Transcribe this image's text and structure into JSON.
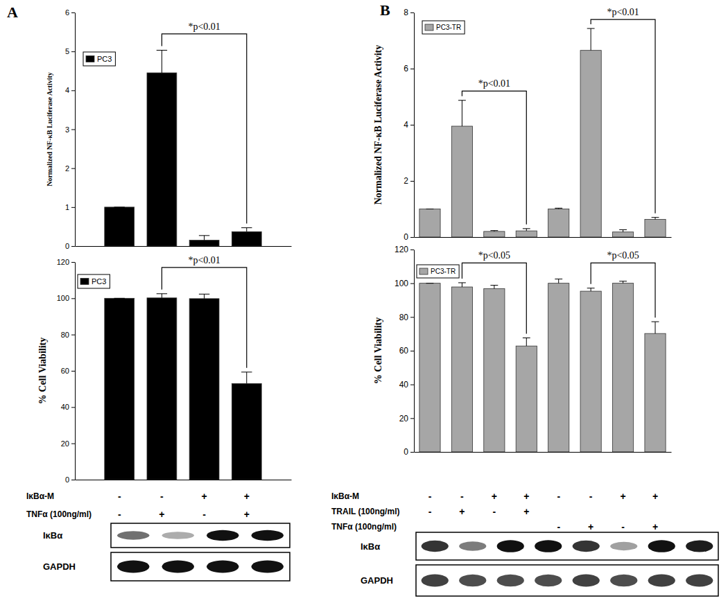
{
  "chart_data": [
    {
      "type": "bar",
      "panel": "A",
      "ylabel": "Normalized NF-κB Luciferase Activity",
      "categories": [
        null,
        null,
        null,
        null
      ],
      "series": [
        {
          "name": "PC3",
          "color": "#000000",
          "values": [
            1,
            4.45,
            0.15,
            0.37
          ],
          "errors": [
            0,
            0.58,
            0.12,
            0.1
          ]
        }
      ],
      "ylim": [
        0,
        6
      ],
      "yticks": [
        0,
        1,
        2,
        3,
        4,
        5,
        6
      ],
      "legend": "top-left",
      "annotations": [
        {
          "text": "*p<0.01",
          "from": 1,
          "to": 3,
          "y": 5.45
        }
      ]
    },
    {
      "type": "bar",
      "ylabel": "% Cell Viability",
      "categories": [
        null,
        null,
        null,
        null
      ],
      "series": [
        {
          "name": "PC3",
          "color": "#000000",
          "values": [
            100,
            100.2,
            99.8,
            53
          ],
          "errors": [
            0,
            2.3,
            2.5,
            6.3
          ]
        }
      ],
      "ylim": [
        0,
        120
      ],
      "yticks": [
        0,
        20,
        40,
        60,
        80,
        100,
        120
      ],
      "legend": "top-left",
      "annotations": [
        {
          "text": "*p<0.01",
          "from": 1,
          "to": 3,
          "y": 117
        }
      ],
      "treatments": [
        {
          "label": "IκBα-M",
          "signs": [
            "-",
            "-",
            "+",
            "+"
          ]
        },
        {
          "label": "TNFα (100ng/ml)",
          "signs": [
            "-",
            "+",
            "-",
            "+"
          ]
        }
      ],
      "blots": [
        {
          "label": "IκBα",
          "intensity": [
            0.6,
            0.35,
            1,
            1
          ]
        },
        {
          "label": "GAPDH",
          "intensity": [
            1,
            1,
            1,
            1
          ]
        }
      ]
    },
    {
      "type": "bar",
      "panel": "B",
      "ylabel": "Normalized NF-κB Luciferase Activity",
      "categories": [
        null,
        null,
        null,
        null,
        null,
        null,
        null,
        null
      ],
      "series": [
        {
          "name": "PC3-TR",
          "color": "#a6a6a6",
          "values": [
            1,
            3.95,
            0.2,
            0.22,
            1,
            6.65,
            0.18,
            0.63
          ],
          "errors": [
            0,
            0.92,
            0.03,
            0.08,
            0.03,
            0.78,
            0.08,
            0.07
          ]
        }
      ],
      "ylim": [
        0,
        8
      ],
      "yticks": [
        0,
        2,
        4,
        6,
        8
      ],
      "legend": "top-left",
      "annotations": [
        {
          "text": "*p<0.01",
          "from": 1,
          "to": 3,
          "y": 5.2
        },
        {
          "text": "*p<0.01",
          "from": 5,
          "to": 7,
          "y": 7.75
        }
      ]
    },
    {
      "type": "bar",
      "ylabel": "% Cell Viability",
      "categories": [
        null,
        null,
        null,
        null,
        null,
        null,
        null,
        null
      ],
      "series": [
        {
          "name": "PC3-TR",
          "color": "#a6a6a6",
          "values": [
            100,
            97.8,
            96.8,
            62.8,
            100,
            95.3,
            100,
            70.2
          ],
          "errors": [
            0,
            2.5,
            2,
            4.8,
            2.5,
            1.8,
            1.2,
            7
          ]
        }
      ],
      "ylim": [
        0,
        120
      ],
      "yticks": [
        0,
        20,
        40,
        60,
        80,
        100,
        120
      ],
      "legend": "top-left",
      "annotations": [
        {
          "text": "*p<0.05",
          "from": 1,
          "to": 3,
          "y": 112
        },
        {
          "text": "*p<0.05",
          "from": 5,
          "to": 7,
          "y": 112
        }
      ],
      "treatments": [
        {
          "label": "IκBα-M",
          "signs": [
            "-",
            "-",
            "+",
            "+",
            "-",
            "-",
            "+",
            "+"
          ]
        },
        {
          "label": "TRAIL (100ng/ml)",
          "signs": [
            "-",
            "+",
            "-",
            "+",
            null,
            null,
            null,
            null
          ]
        },
        {
          "label": "TNFα (100ng/ml)",
          "signs": [
            null,
            null,
            null,
            null,
            "-",
            "+",
            "-",
            "+"
          ]
        }
      ],
      "blots": [
        {
          "label": "IκBα",
          "intensity": [
            0.85,
            0.55,
            1,
            1,
            0.85,
            0.4,
            1,
            0.95
          ]
        },
        {
          "label": "GAPDH",
          "intensity": [
            0.8,
            0.75,
            0.75,
            0.75,
            0.8,
            0.75,
            0.8,
            0.8
          ]
        }
      ]
    }
  ]
}
